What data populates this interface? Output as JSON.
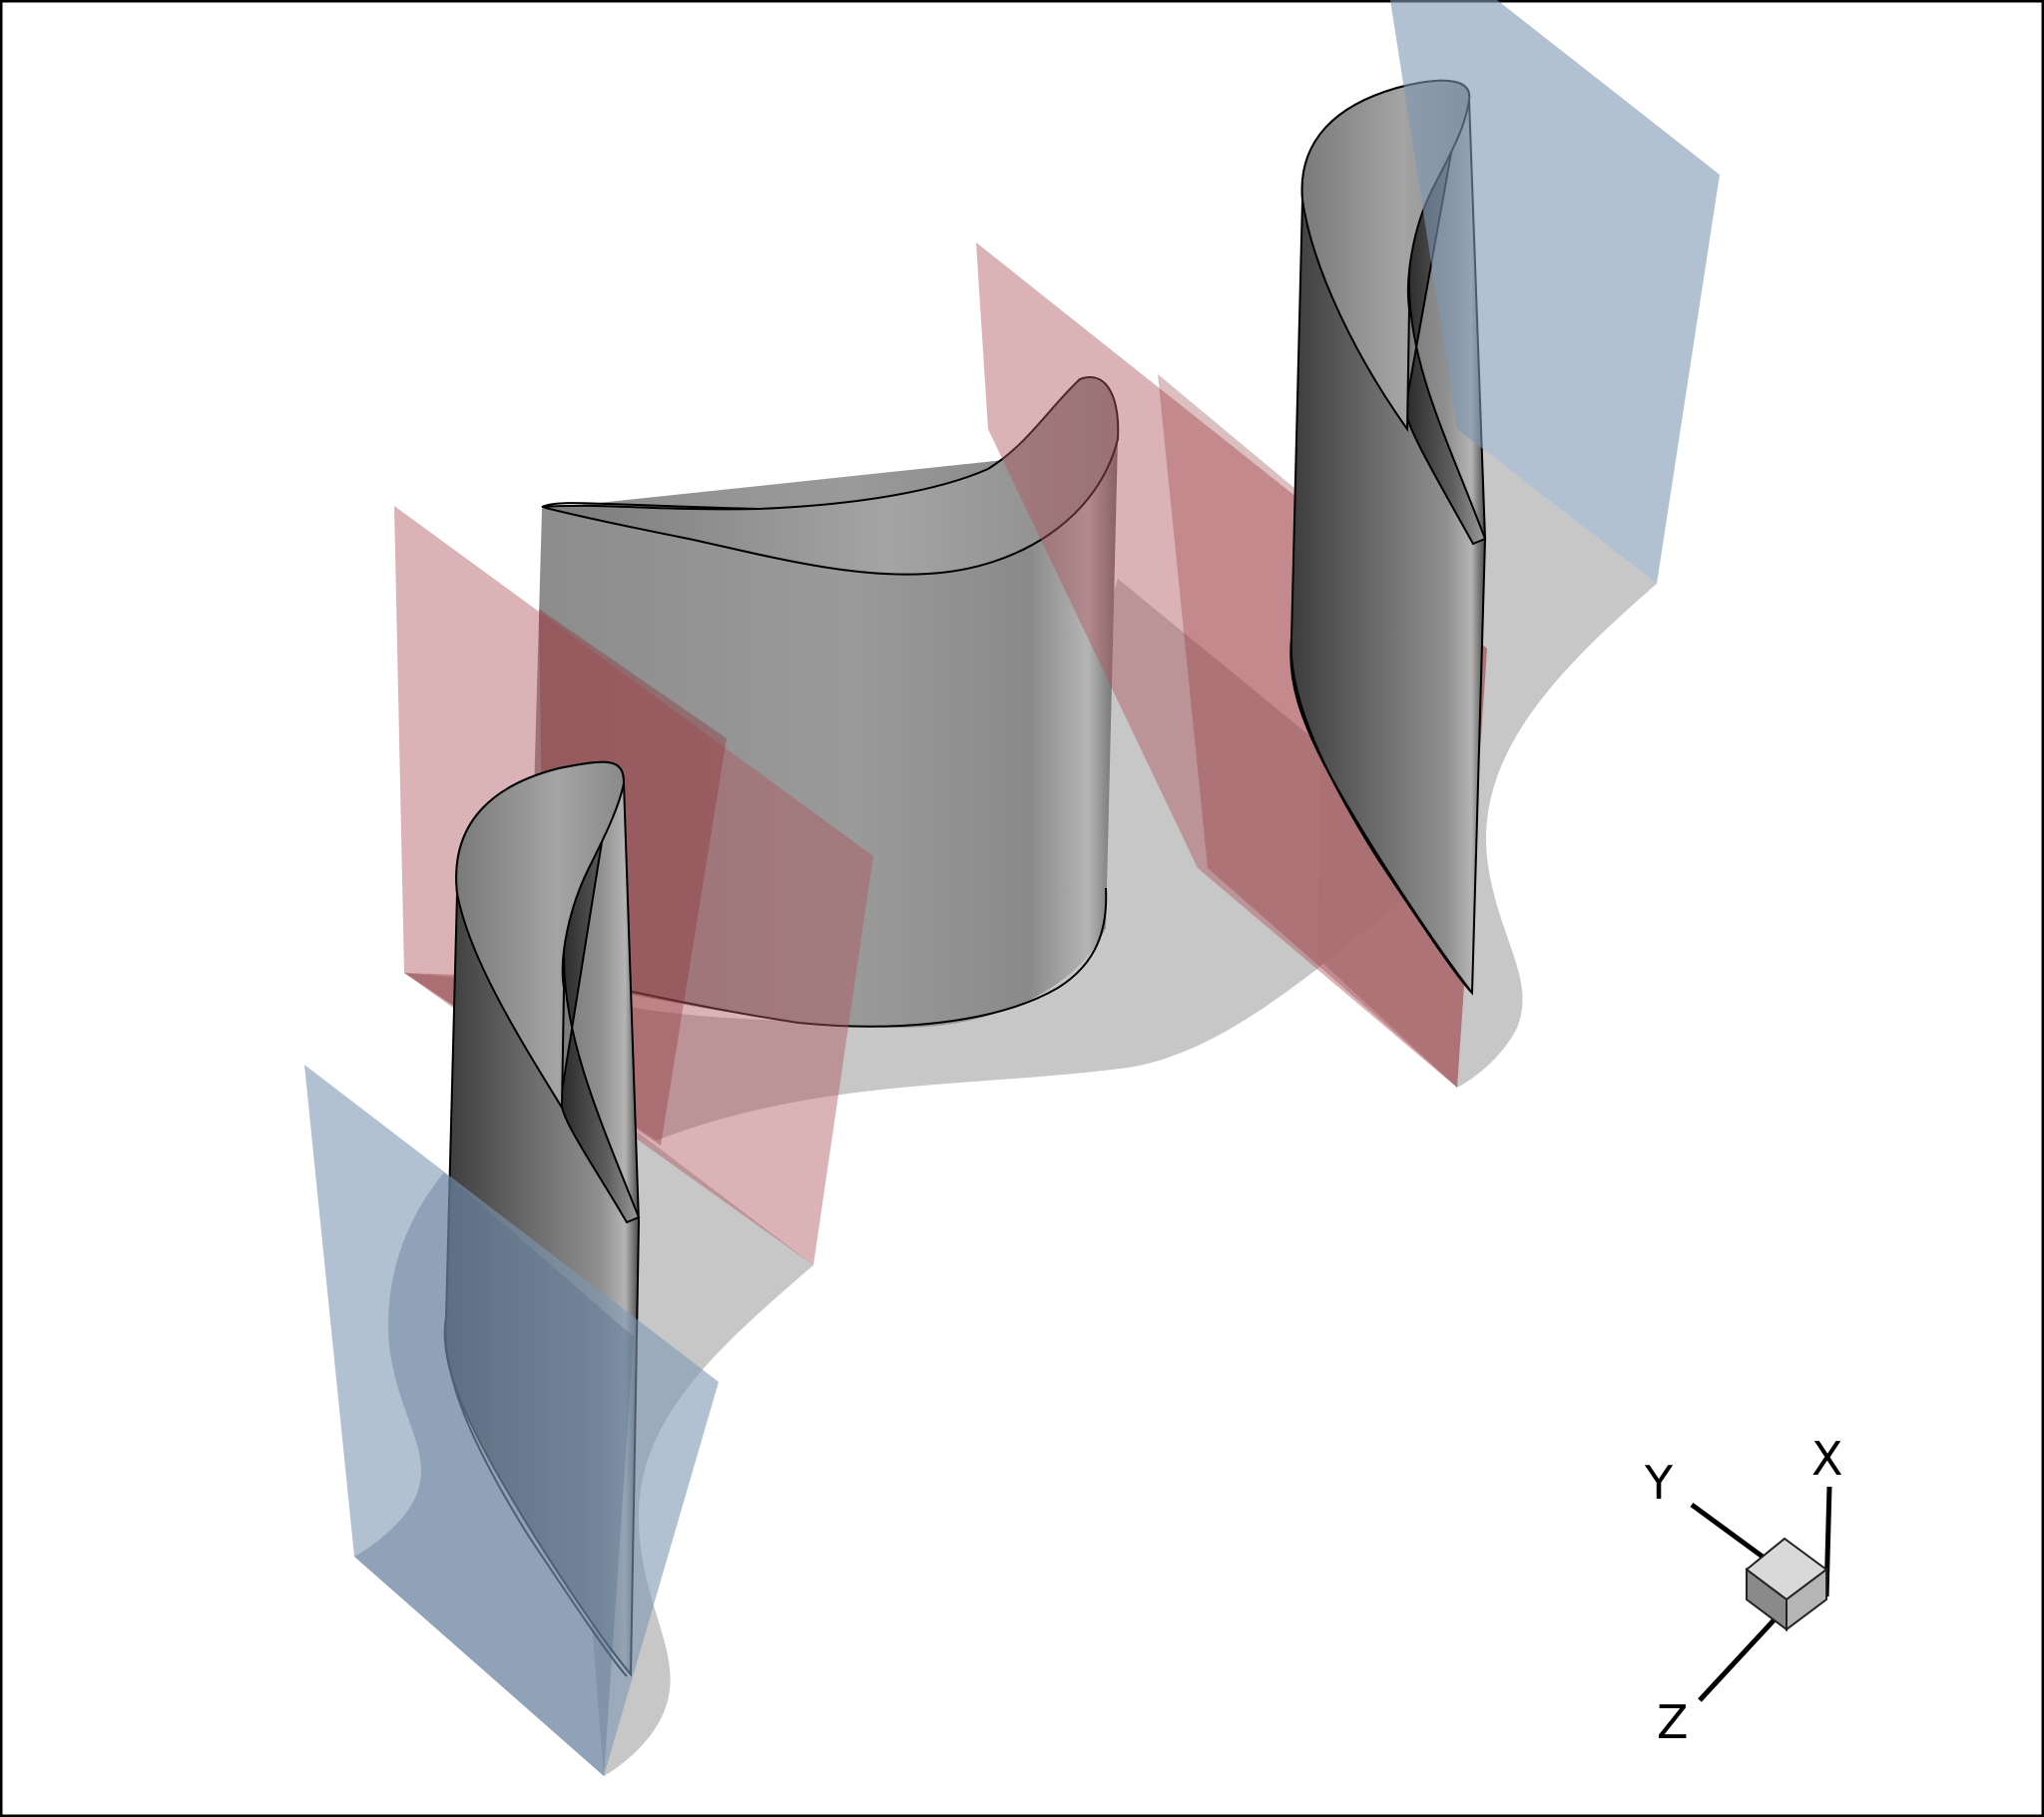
{
  "figure": {
    "colors": {
      "background": "#ffffff",
      "frame": "#000000",
      "red_plane": "#b0545e",
      "blue_plane": "#7f97b3",
      "gray_shadow": "#bdbdbd",
      "blade_dark": "#3a3a3a",
      "blade_light": "#a6a6a6"
    },
    "axis_triad": {
      "x_label": "X",
      "y_label": "Y",
      "z_label": "Z"
    }
  }
}
